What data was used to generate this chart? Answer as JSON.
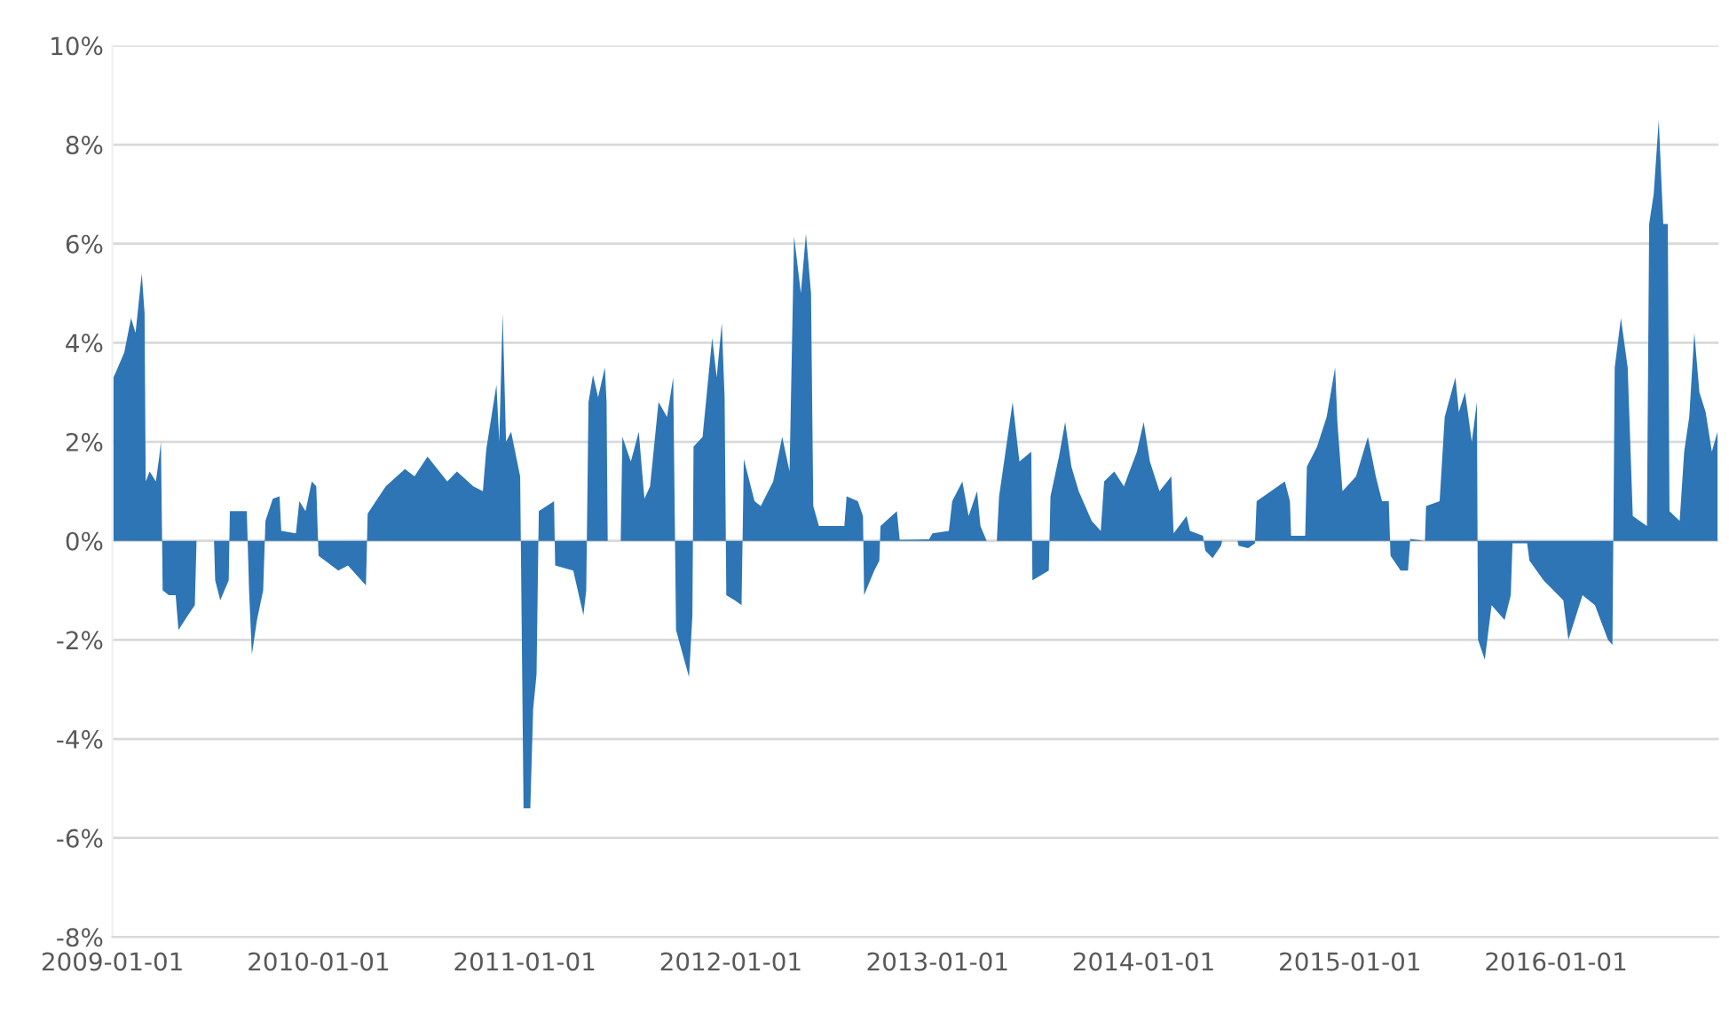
{
  "chart_data": {
    "type": "area",
    "x": [
      "2009-01-03",
      "2009-01-22",
      "2009-02-03",
      "2009-02-11",
      "2009-02-22",
      "2009-02-27",
      "2009-03-01",
      "2009-03-08",
      "2009-03-19",
      "2009-03-25",
      "2009-03-28",
      "2009-03-31",
      "2009-04-11",
      "2009-04-23",
      "2009-04-28",
      "2009-05-15",
      "2009-05-27",
      "2009-05-30",
      "2009-06-30",
      "2009-07-02",
      "2009-07-11",
      "2009-07-26",
      "2009-07-28",
      "2009-08-27",
      "2009-08-31",
      "2009-09-05",
      "2009-09-14",
      "2009-09-25",
      "2009-09-29",
      "2009-10-12",
      "2009-10-24",
      "2009-10-27",
      "2009-11-22",
      "2009-11-28",
      "2009-12-09",
      "2009-12-20",
      "2009-12-28",
      "2010-01-01",
      "2010-02-05",
      "2010-02-22",
      "2010-03-26",
      "2010-03-29",
      "2010-04-30",
      "2010-06-03",
      "2010-06-20",
      "2010-07-13",
      "2010-08-17",
      "2010-09-03",
      "2010-10-02",
      "2010-10-19",
      "2010-10-25",
      "2010-11-12",
      "2010-11-17",
      "2010-11-23",
      "2010-11-29",
      "2010-12-08",
      "2010-12-24",
      "2010-12-30",
      "2011-01-11",
      "2011-01-16",
      "2011-01-22",
      "2011-01-26",
      "2011-02-22",
      "2011-02-24",
      "2011-03-28",
      "2011-04-15",
      "2011-04-20",
      "2011-04-24",
      "2011-05-02",
      "2011-05-11",
      "2011-05-23",
      "2011-05-26",
      "2011-05-28",
      "2011-06-20",
      "2011-06-23",
      "2011-07-08",
      "2011-07-22",
      "2011-08-01",
      "2011-08-11",
      "2011-08-26",
      "2011-09-10",
      "2011-09-21",
      "2011-09-26",
      "2011-10-08",
      "2011-10-19",
      "2011-10-25",
      "2011-10-27",
      "2011-11-12",
      "2011-11-29",
      "2011-12-07",
      "2011-12-16",
      "2011-12-21",
      "2011-12-24",
      "2012-01-08",
      "2012-01-20",
      "2012-01-24",
      "2012-02-12",
      "2012-02-23",
      "2012-03-16",
      "2012-04-01",
      "2012-04-14",
      "2012-04-22",
      "2012-05-04",
      "2012-05-13",
      "2012-05-22",
      "2012-05-26",
      "2012-06-05",
      "2012-07-20",
      "2012-07-24",
      "2012-08-13",
      "2012-08-22",
      "2012-08-24",
      "2012-09-11",
      "2012-09-20",
      "2012-09-22",
      "2012-10-21",
      "2012-10-26",
      "2012-12-17",
      "2012-12-23",
      "2013-01-21",
      "2013-01-27",
      "2013-02-14",
      "2013-02-25",
      "2013-03-12",
      "2013-03-18",
      "2013-03-29",
      "2013-04-16",
      "2013-04-20",
      "2013-05-14",
      "2013-05-26",
      "2013-06-16",
      "2013-06-18",
      "2013-07-17",
      "2013-07-20",
      "2013-08-04",
      "2013-08-15",
      "2013-08-26",
      "2013-09-08",
      "2013-10-01",
      "2013-10-17",
      "2013-10-23",
      "2013-11-10",
      "2013-11-27",
      "2013-12-20",
      "2014-01-01",
      "2014-01-12",
      "2014-01-29",
      "2014-02-19",
      "2014-02-23",
      "2014-03-18",
      "2014-03-24",
      "2014-04-16",
      "2014-04-20",
      "2014-05-03",
      "2014-05-18",
      "2014-05-20",
      "2014-06-16",
      "2014-06-18",
      "2014-07-05",
      "2014-07-17",
      "2014-07-20",
      "2014-09-08",
      "2014-09-17",
      "2014-09-19",
      "2014-10-14",
      "2014-10-17",
      "2014-11-04",
      "2014-11-21",
      "2014-12-06",
      "2014-12-10",
      "2014-12-19",
      "2015-01-12",
      "2015-02-02",
      "2015-02-16",
      "2015-02-27",
      "2015-03-11",
      "2015-03-14",
      "2015-04-01",
      "2015-04-14",
      "2015-04-18",
      "2015-05-14",
      "2015-05-16",
      "2015-06-09",
      "2015-06-18",
      "2015-07-07",
      "2015-07-13",
      "2015-07-24",
      "2015-08-05",
      "2015-08-14",
      "2015-08-16",
      "2015-08-28",
      "2015-09-09",
      "2015-10-02",
      "2015-10-13",
      "2015-10-16",
      "2015-11-11",
      "2015-11-15",
      "2015-12-10",
      "2016-01-14",
      "2016-01-23",
      "2016-02-17",
      "2016-03-10",
      "2016-04-02",
      "2016-04-10",
      "2016-04-14",
      "2016-04-25",
      "2016-05-07",
      "2016-05-16",
      "2016-06-10",
      "2016-06-14",
      "2016-06-22",
      "2016-07-01",
      "2016-07-09",
      "2016-07-17",
      "2016-07-20",
      "2016-08-07",
      "2016-08-15",
      "2016-08-24",
      "2016-09-02",
      "2016-09-11",
      "2016-09-22",
      "2016-10-03",
      "2016-10-13"
    ],
    "values": [
      3.3,
      3.8,
      4.5,
      4.2,
      5.4,
      4.6,
      1.2,
      1.4,
      1.2,
      1.7,
      2.0,
      -1.0,
      -1.1,
      -1.1,
      -1.8,
      -1.5,
      -1.3,
      0,
      0,
      -0.8,
      -1.2,
      -0.8,
      0.6,
      0.6,
      -1.0,
      -2.3,
      -1.6,
      -1.0,
      0.4,
      0.85,
      0.9,
      0.2,
      0.15,
      0.8,
      0.6,
      1.2,
      1.1,
      -0.3,
      -0.6,
      -0.5,
      -0.9,
      0.55,
      1.1,
      1.45,
      1.3,
      1.7,
      1.2,
      1.4,
      1.1,
      1.0,
      1.85,
      3.15,
      2.0,
      4.6,
      2.0,
      2.2,
      1.3,
      -5.4,
      -5.4,
      -3.4,
      -2.7,
      0.6,
      0.8,
      -0.5,
      -0.6,
      -1.5,
      -1.0,
      2.8,
      3.35,
      2.9,
      3.5,
      2.8,
      0,
      0,
      2.1,
      1.6,
      2.2,
      0.85,
      1.1,
      2.8,
      2.5,
      3.3,
      -1.8,
      -2.3,
      -2.75,
      -1.5,
      1.9,
      2.1,
      4.1,
      3.3,
      4.4,
      2.9,
      -1.1,
      -1.2,
      -1.3,
      1.65,
      0.8,
      0.7,
      1.2,
      2.1,
      1.4,
      6.15,
      5.0,
      6.2,
      5.0,
      0.7,
      0.3,
      0.3,
      0.9,
      0.8,
      0.5,
      -1.1,
      -0.6,
      -0.4,
      0.3,
      0.6,
      0.02,
      0.03,
      0.15,
      0.2,
      0.8,
      1.2,
      0.5,
      1.0,
      0.3,
      0,
      0,
      0.9,
      2.8,
      1.6,
      1.8,
      -0.8,
      -0.6,
      0.9,
      1.7,
      2.4,
      1.5,
      1.0,
      0.4,
      0.2,
      1.2,
      1.4,
      1.1,
      1.8,
      2.4,
      1.6,
      1.0,
      1.3,
      0.15,
      0.5,
      0.2,
      0.1,
      -0.2,
      -0.35,
      -0.1,
      0,
      0,
      -0.1,
      -0.15,
      -0.05,
      0.8,
      1.2,
      0.8,
      0.1,
      0.1,
      1.5,
      1.9,
      2.5,
      3.5,
      2.4,
      1.0,
      1.3,
      2.1,
      1.3,
      0.8,
      0.8,
      -0.3,
      -0.6,
      -0.6,
      0.04,
      0,
      0.7,
      0.8,
      2.5,
      3.3,
      2.6,
      3.0,
      2.0,
      2.8,
      -2.0,
      -2.4,
      -1.3,
      -1.6,
      -1.1,
      -0.05,
      -0.05,
      -0.4,
      -0.8,
      -1.2,
      -2.0,
      -1.1,
      -1.3,
      -2.0,
      -2.1,
      3.5,
      4.5,
      3.5,
      0.5,
      0.3,
      6.4,
      7.0,
      8.5,
      6.4,
      6.4,
      0.6,
      0.4,
      1.8,
      2.5,
      4.2,
      3.0,
      2.6,
      1.8,
      2.2
    ],
    "color": "#2e75b6",
    "xlim": [
      "2009-01-01",
      "2016-10-15"
    ],
    "xticks": [
      "2009-01-01",
      "2010-01-01",
      "2011-01-01",
      "2012-01-01",
      "2013-01-01",
      "2014-01-01",
      "2015-01-01",
      "2016-01-01"
    ],
    "ylim": [
      -8,
      10
    ],
    "yticks": [
      {
        "value": -8,
        "label": "-8%"
      },
      {
        "value": -6,
        "label": "-6%"
      },
      {
        "value": -4,
        "label": "-4%"
      },
      {
        "value": -2,
        "label": "-2%"
      },
      {
        "value": 0,
        "label": "0%"
      },
      {
        "value": 2,
        "label": "2%"
      },
      {
        "value": 4,
        "label": "4%"
      },
      {
        "value": 6,
        "label": "6%"
      },
      {
        "value": 8,
        "label": "8%"
      },
      {
        "value": 10,
        "label": "10%"
      }
    ],
    "grid": "y"
  }
}
